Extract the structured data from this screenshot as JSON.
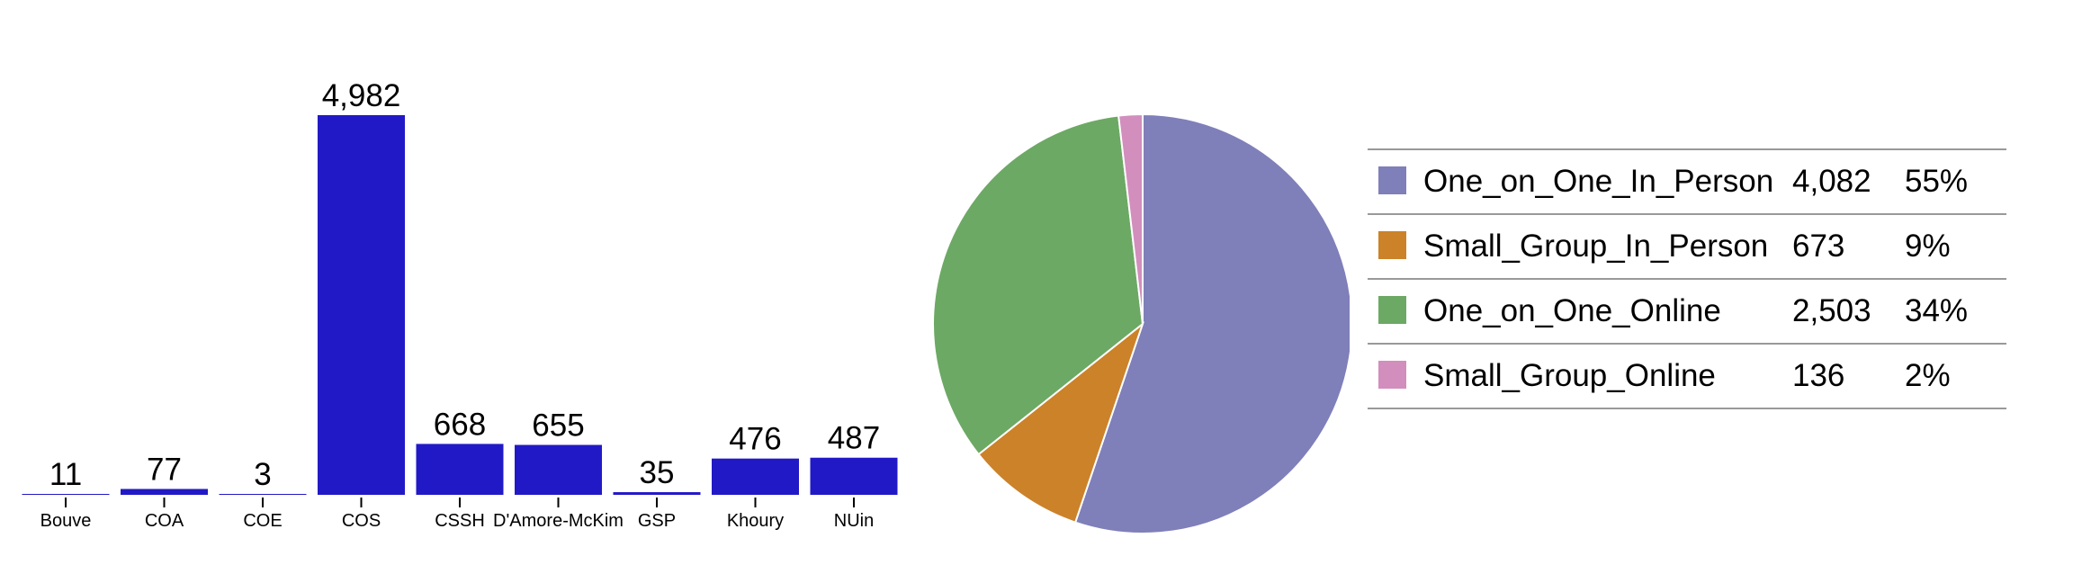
{
  "chart_data": [
    {
      "type": "bar",
      "categories": [
        "Bouve",
        "COA",
        "COE",
        "COS",
        "CSSH",
        "D'Amore-McKim",
        "GSP",
        "Khoury",
        "NUin"
      ],
      "values": [
        11,
        77,
        3,
        4982,
        668,
        655,
        35,
        476,
        487
      ],
      "value_labels": [
        "11",
        "77",
        "3",
        "4,982",
        "668",
        "655",
        "35",
        "476",
        "487"
      ],
      "color": "#2219c6",
      "ylim": [
        0,
        4982
      ]
    },
    {
      "type": "pie",
      "labels": [
        "One_on_One_In_Person",
        "Small_Group_In_Person",
        "One_on_One_Online",
        "Small_Group_Online"
      ],
      "values": [
        4082,
        673,
        2503,
        136
      ],
      "value_labels": [
        "4,082",
        "673",
        "2,503",
        "136"
      ],
      "percent_labels": [
        "55%",
        "9%",
        "34%",
        "2%"
      ],
      "colors": [
        "#7f7fb9",
        "#cc8229",
        "#6ca964",
        "#d28ebd"
      ],
      "legend_placement": "right"
    }
  ]
}
